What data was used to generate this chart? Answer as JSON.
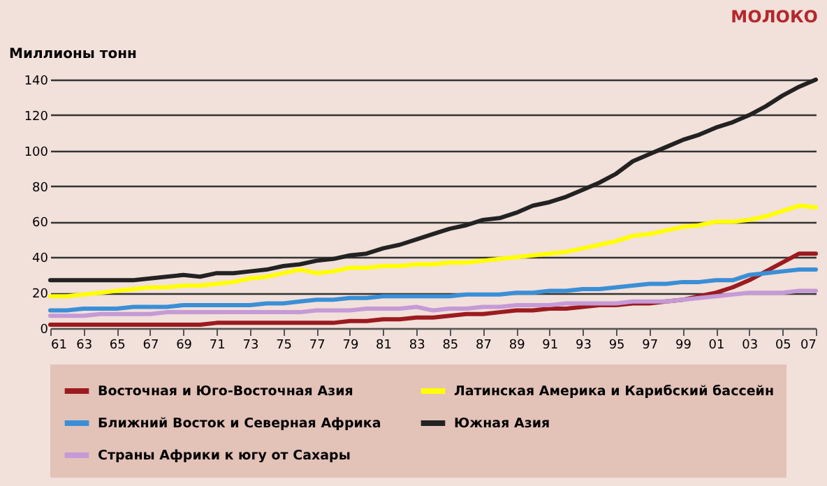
{
  "chart_data": {
    "type": "line",
    "title": "МОЛОКО",
    "ylabel": "Миллионы тонн",
    "x": [
      1961,
      1962,
      1963,
      1964,
      1965,
      1966,
      1967,
      1968,
      1969,
      1970,
      1971,
      1972,
      1973,
      1974,
      1975,
      1976,
      1977,
      1978,
      1979,
      1980,
      1981,
      1982,
      1983,
      1984,
      1985,
      1986,
      1987,
      1988,
      1989,
      1990,
      1991,
      1992,
      1993,
      1994,
      1995,
      1996,
      1997,
      1998,
      1999,
      2000,
      2001,
      2002,
      2003,
      2004,
      2005,
      2006,
      2007
    ],
    "xlim": [
      1961,
      2007
    ],
    "xticks": [
      {
        "value": 1961,
        "label": "61"
      },
      {
        "value": 1963,
        "label": "63"
      },
      {
        "value": 1965,
        "label": "65"
      },
      {
        "value": 1967,
        "label": "67"
      },
      {
        "value": 1969,
        "label": "69"
      },
      {
        "value": 1971,
        "label": "71"
      },
      {
        "value": 1973,
        "label": "73"
      },
      {
        "value": 1975,
        "label": "75"
      },
      {
        "value": 1977,
        "label": "77"
      },
      {
        "value": 1979,
        "label": "79"
      },
      {
        "value": 1981,
        "label": "81"
      },
      {
        "value": 1983,
        "label": "83"
      },
      {
        "value": 1985,
        "label": "85"
      },
      {
        "value": 1987,
        "label": "87"
      },
      {
        "value": 1989,
        "label": "89"
      },
      {
        "value": 1991,
        "label": "91"
      },
      {
        "value": 1993,
        "label": "93"
      },
      {
        "value": 1995,
        "label": "95"
      },
      {
        "value": 1997,
        "label": "97"
      },
      {
        "value": 1999,
        "label": "99"
      },
      {
        "value": 2001,
        "label": "01"
      },
      {
        "value": 2003,
        "label": "03"
      },
      {
        "value": 2005,
        "label": "05"
      },
      {
        "value": 2007,
        "label": "07"
      }
    ],
    "ylim": [
      0,
      140
    ],
    "yticks": [
      0,
      20,
      40,
      60,
      80,
      100,
      120,
      140
    ],
    "grid": "y",
    "legend": "bottom",
    "line_style": "solid",
    "marker": "none",
    "series": [
      {
        "name": "Восточная и Юго-Восточная Азия",
        "color": "#9b1b1f",
        "values": [
          2,
          2,
          2,
          2,
          2,
          2,
          2,
          2,
          2,
          2,
          3,
          3,
          3,
          3,
          3,
          3,
          3,
          3,
          4,
          4,
          5,
          5,
          6,
          6,
          7,
          8,
          8,
          9,
          10,
          10,
          11,
          11,
          12,
          13,
          13,
          14,
          14,
          15,
          16,
          18,
          20,
          23,
          27,
          32,
          37,
          42,
          42
        ]
      },
      {
        "name": "Латинская Америка и Карибский бассейн",
        "color": "#ffff00",
        "values": [
          18,
          18,
          19,
          20,
          21,
          22,
          23,
          23,
          24,
          24,
          25,
          26,
          28,
          29,
          31,
          33,
          31,
          32,
          34,
          34,
          35,
          35,
          36,
          36,
          37,
          37,
          38,
          39,
          40,
          41,
          42,
          43,
          45,
          47,
          49,
          52,
          53,
          55,
          57,
          58,
          60,
          60,
          61,
          63,
          66,
          69,
          68
        ]
      },
      {
        "name": "Ближний Восток и Северная Африка",
        "color": "#3a8fd6",
        "values": [
          10,
          10,
          11,
          11,
          11,
          12,
          12,
          12,
          13,
          13,
          13,
          13,
          13,
          14,
          14,
          15,
          16,
          16,
          17,
          17,
          18,
          18,
          18,
          18,
          18,
          19,
          19,
          19,
          20,
          20,
          21,
          21,
          22,
          22,
          23,
          24,
          25,
          25,
          26,
          26,
          27,
          27,
          30,
          31,
          32,
          33,
          33
        ]
      },
      {
        "name": "Южная Азия",
        "color": "#222222",
        "values": [
          27,
          27,
          27,
          27,
          27,
          27,
          28,
          29,
          30,
          29,
          31,
          31,
          32,
          33,
          35,
          36,
          38,
          39,
          41,
          42,
          45,
          47,
          50,
          53,
          56,
          58,
          61,
          62,
          65,
          69,
          71,
          74,
          78,
          82,
          87,
          94,
          98,
          102,
          106,
          109,
          113,
          116,
          120,
          125,
          131,
          136,
          140
        ]
      },
      {
        "name": "Страны Африки к югу от Сахары",
        "color": "#c59ad6",
        "values": [
          7,
          7,
          7,
          8,
          8,
          8,
          8,
          9,
          9,
          9,
          9,
          9,
          9,
          9,
          9,
          9,
          10,
          10,
          10,
          11,
          11,
          11,
          12,
          10,
          11,
          11,
          12,
          12,
          13,
          13,
          13,
          14,
          14,
          14,
          14,
          15,
          15,
          15,
          16,
          17,
          18,
          19,
          20,
          20,
          20,
          21,
          21
        ]
      }
    ]
  }
}
